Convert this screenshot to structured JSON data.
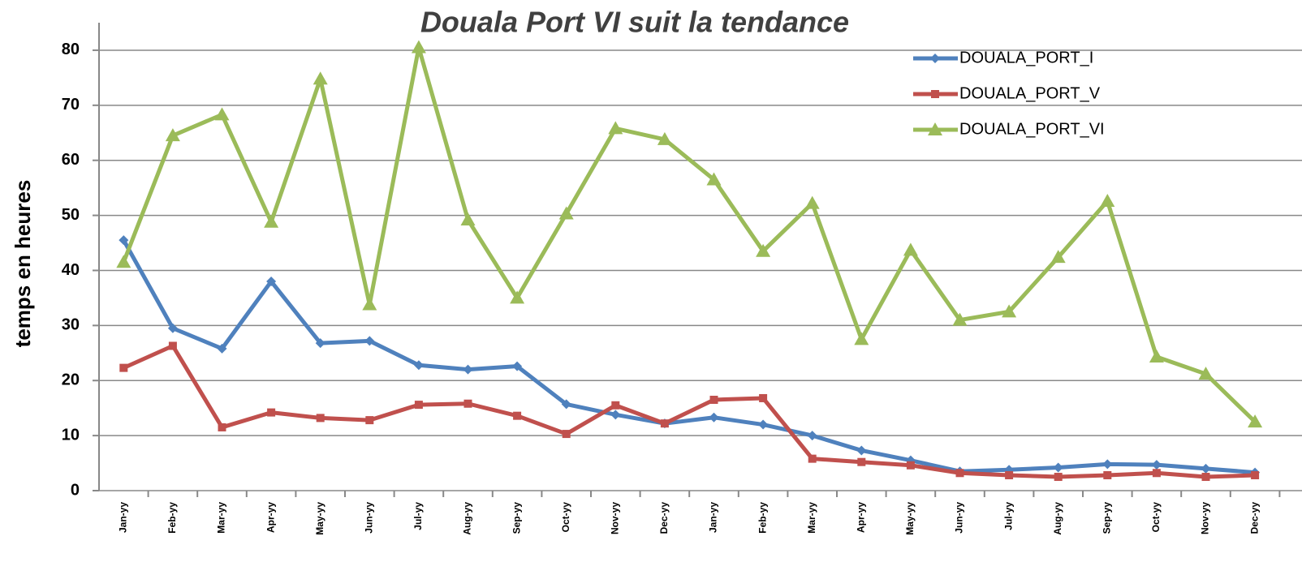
{
  "chart_data": {
    "type": "line",
    "title": "Douala Port VI suit la tendance",
    "y_label": "temps en heures",
    "categories": [
      "Jan-yy",
      "Feb-yy",
      "Mar-yy",
      "Apr-yy",
      "May-yy",
      "Jun-yy",
      "Jul-yy",
      "Aug-yy",
      "Sep-yy",
      "Oct-yy",
      "Nov-yy",
      "Dec-yy",
      "Jan-yy",
      "Feb-yy",
      "Mar-yy",
      "Apr-yy",
      "May-yy",
      "Jun-yy",
      "Jul-yy",
      "Aug-yy",
      "Sep-yy",
      "Oct-yy",
      "Nov-yy",
      "Dec-yy"
    ],
    "series": [
      {
        "name": "DOUALA_PORT_I",
        "color": "#4f81bd",
        "marker": "diamond",
        "values": [
          45.5,
          29.5,
          25.8,
          38,
          26.8,
          27.2,
          22.8,
          22,
          22.6,
          15.7,
          13.8,
          12.2,
          13.3,
          12,
          10,
          7.3,
          5.5,
          3.5,
          3.8,
          4.2,
          4.8,
          4.7,
          4,
          3.3
        ]
      },
      {
        "name": "DOUALA_PORT_V",
        "color": "#c0504d",
        "marker": "square",
        "values": [
          22.3,
          26.3,
          11.5,
          14.2,
          13.2,
          12.8,
          15.6,
          15.8,
          13.6,
          10.3,
          15.5,
          12.2,
          16.5,
          16.8,
          5.8,
          5.2,
          4.6,
          3.2,
          2.8,
          2.5,
          2.8,
          3.2,
          2.5,
          2.8
        ]
      },
      {
        "name": "DOUALA_PORT_VI",
        "color": "#9bbb59",
        "marker": "triangle",
        "values": [
          41.5,
          64.5,
          68.3,
          48.8,
          74.8,
          33.8,
          80.5,
          49.2,
          35,
          50.3,
          65.8,
          63.8,
          56.5,
          43.5,
          52.2,
          27.5,
          43.7,
          31,
          32.5,
          42.4,
          52.6,
          24.3,
          21.2,
          12.5
        ]
      }
    ],
    "ylim": [
      0,
      85
    ],
    "yticks": [
      0,
      10,
      20,
      30,
      40,
      50,
      60,
      70,
      80
    ],
    "grid": true,
    "legend": "top-right"
  }
}
